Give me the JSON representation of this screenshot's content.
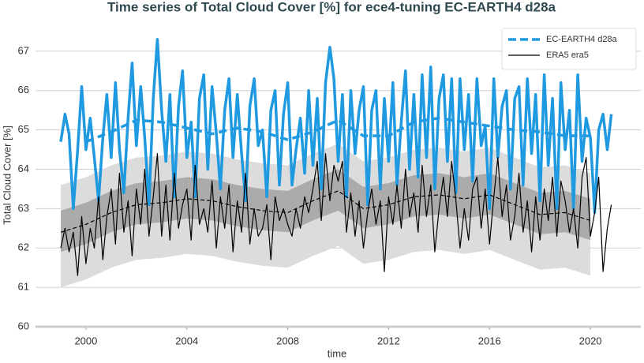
{
  "chart_data": {
    "type": "line",
    "title": "Time series of Total Cloud Cover [%] for ece4-tuning EC-EARTH4 d28a",
    "xlabel": "time",
    "ylabel": "Total Cloud Cover [%]",
    "xlim": [
      1998,
      2022
    ],
    "ylim": [
      60,
      67.7
    ],
    "xticks": [
      2000,
      2004,
      2008,
      2012,
      2016,
      2020
    ],
    "yticks": [
      60,
      61,
      62,
      63,
      64,
      65,
      66,
      67
    ],
    "grid": true,
    "legend": "upper right",
    "x": [
      1999,
      1999.17,
      1999.33,
      1999.5,
      1999.67,
      1999.83,
      2000,
      2000.17,
      2000.33,
      2000.5,
      2000.67,
      2000.83,
      2001,
      2001.17,
      2001.33,
      2001.5,
      2001.67,
      2001.83,
      2002,
      2002.17,
      2002.33,
      2002.5,
      2002.67,
      2002.83,
      2003,
      2003.17,
      2003.33,
      2003.5,
      2003.67,
      2003.83,
      2004,
      2004.17,
      2004.33,
      2004.5,
      2004.67,
      2004.83,
      2005,
      2005.17,
      2005.33,
      2005.5,
      2005.67,
      2005.83,
      2006,
      2006.17,
      2006.33,
      2006.5,
      2006.67,
      2006.83,
      2007,
      2007.17,
      2007.33,
      2007.5,
      2007.67,
      2007.83,
      2008,
      2008.17,
      2008.33,
      2008.5,
      2008.67,
      2008.83,
      2009,
      2009.17,
      2009.33,
      2009.5,
      2009.67,
      2009.83,
      2010,
      2010.17,
      2010.33,
      2010.5,
      2010.67,
      2010.83,
      2011,
      2011.17,
      2011.33,
      2011.5,
      2011.67,
      2011.83,
      2012,
      2012.17,
      2012.33,
      2012.5,
      2012.67,
      2012.83,
      2013,
      2013.17,
      2013.33,
      2013.5,
      2013.67,
      2013.83,
      2014,
      2014.17,
      2014.33,
      2014.5,
      2014.67,
      2014.83,
      2015,
      2015.17,
      2015.33,
      2015.5,
      2015.67,
      2015.83,
      2016,
      2016.17,
      2016.33,
      2016.5,
      2016.67,
      2016.83,
      2017,
      2017.17,
      2017.33,
      2017.5,
      2017.67,
      2017.83,
      2018,
      2018.17,
      2018.33,
      2018.5,
      2018.67,
      2018.83,
      2019,
      2019.17,
      2019.33,
      2019.5,
      2019.67,
      2019.83,
      2020,
      2020.17,
      2020.33,
      2020.5,
      2020.67,
      2020.83
    ],
    "smooth_x": [
      1999,
      2000,
      2001,
      2002,
      2003,
      2004,
      2005,
      2006,
      2007,
      2008,
      2009,
      2010,
      2011,
      2012,
      2013,
      2014,
      2015,
      2016,
      2017,
      2018,
      2019,
      2020
    ],
    "bands": [
      {
        "color": "#dcdcdc",
        "lower": [
          61.0,
          61.2,
          61.5,
          61.7,
          61.75,
          61.85,
          61.8,
          61.65,
          61.55,
          61.5,
          61.8,
          62.05,
          61.6,
          61.7,
          61.9,
          61.95,
          61.85,
          61.95,
          61.7,
          61.45,
          61.5,
          61.3
        ],
        "upper": [
          63.6,
          63.8,
          64.1,
          64.3,
          64.35,
          64.45,
          64.4,
          64.25,
          64.15,
          64.1,
          64.4,
          64.65,
          64.2,
          64.3,
          64.5,
          64.55,
          64.45,
          64.55,
          64.3,
          64.05,
          64.1,
          63.9
        ]
      },
      {
        "color": "#ababab",
        "lower": [
          61.9,
          62.1,
          62.4,
          62.6,
          62.65,
          62.75,
          62.7,
          62.55,
          62.45,
          62.4,
          62.7,
          62.95,
          62.5,
          62.6,
          62.8,
          62.85,
          62.75,
          62.85,
          62.6,
          62.35,
          62.4,
          62.2
        ],
        "upper": [
          62.95,
          63.15,
          63.45,
          63.65,
          63.7,
          63.8,
          63.75,
          63.6,
          63.5,
          63.45,
          63.75,
          64.0,
          63.55,
          63.65,
          63.85,
          63.9,
          63.8,
          63.9,
          63.65,
          63.4,
          63.45,
          63.25
        ]
      }
    ],
    "series": [
      {
        "name": "EC-EARTH4 d28a",
        "color": "#1f9ae0",
        "width": 3.5,
        "legend_line": "dashed",
        "values": [
          64.7,
          65.4,
          64.9,
          63.0,
          64.5,
          66.1,
          64.5,
          65.3,
          64.3,
          63.2,
          64.8,
          65.9,
          64.3,
          66.2,
          64.5,
          63.4,
          65.3,
          66.7,
          64.6,
          66.1,
          64.8,
          63.1,
          65.8,
          67.3,
          65.5,
          64.2,
          65.9,
          63.3,
          65.6,
          66.5,
          64.3,
          65.2,
          63.3,
          65.8,
          66.4,
          64.0,
          66.1,
          64.9,
          63.5,
          65.5,
          66.3,
          64.3,
          65.9,
          64.4,
          63.2,
          65.6,
          66.3,
          64.6,
          65.0,
          63.3,
          65.5,
          66.0,
          63.6,
          65.4,
          66.2,
          63.6,
          64.5,
          65.3,
          63.9,
          66.0,
          64.1,
          65.8,
          63.5,
          66.2,
          67.1,
          66.3,
          64.2,
          65.9,
          63.3,
          66.0,
          64.4,
          65.5,
          66.1,
          63.1,
          65.5,
          66.0,
          63.5,
          65.8,
          64.2,
          66.2,
          63.6,
          65.2,
          66.5,
          64.0,
          65.9,
          63.8,
          66.4,
          64.3,
          66.6,
          63.5,
          65.8,
          66.4,
          64.2,
          66.3,
          63.4,
          66.3,
          64.5,
          65.9,
          63.7,
          66.3,
          64.6,
          65.1,
          63.0,
          66.3,
          64.3,
          65.6,
          66.0,
          63.5,
          65.8,
          66.1,
          63.6,
          66.3,
          64.4,
          65.9,
          63.2,
          66.4,
          64.1,
          65.8,
          63.0,
          66.2,
          64.5,
          65.5,
          63.0,
          66.4,
          64.2,
          65.3,
          64.8,
          62.9,
          65.0,
          65.4,
          64.5,
          65.4
        ],
        "smooth": [
          null,
          64.7,
          64.95,
          65.25,
          65.2,
          65.05,
          64.9,
          65.05,
          64.95,
          64.75,
          64.95,
          65.25,
          64.85,
          64.85,
          65.2,
          65.3,
          65.2,
          65.1,
          65.0,
          64.95,
          64.85,
          64.85
        ]
      },
      {
        "name": "ERA5 era5",
        "color": "#000000",
        "width": 1.2,
        "legend_line": "solid",
        "values": [
          62.0,
          62.5,
          61.9,
          62.4,
          61.3,
          62.8,
          61.6,
          62.5,
          62.0,
          63.3,
          61.7,
          62.8,
          63.5,
          62.1,
          63.9,
          62.4,
          63.2,
          61.8,
          63.5,
          62.6,
          64.0,
          62.3,
          63.3,
          64.4,
          62.3,
          63.6,
          62.2,
          63.9,
          62.5,
          63.1,
          63.5,
          62.2,
          64.1,
          62.6,
          63.0,
          62.4,
          63.7,
          62.0,
          63.3,
          62.5,
          63.6,
          61.9,
          63.2,
          62.4,
          63.9,
          62.1,
          63.0,
          62.3,
          62.5,
          63.1,
          61.7,
          63.3,
          62.7,
          63.0,
          62.6,
          62.3,
          63.0,
          62.5,
          63.3,
          62.9,
          63.5,
          64.2,
          62.7,
          64.4,
          63.2,
          64.1,
          63.7,
          64.2,
          62.4,
          63.4,
          62.3,
          63.2,
          62.0,
          62.9,
          63.5,
          62.6,
          63.2,
          61.4,
          63.3,
          62.6,
          63.6,
          62.5,
          64.0,
          62.8,
          63.4,
          62.4,
          64.1,
          62.8,
          63.6,
          61.9,
          63.0,
          63.8,
          62.8,
          64.2,
          63.2,
          62.0,
          63.0,
          62.2,
          63.5,
          63.8,
          62.5,
          63.5,
          62.1,
          63.3,
          64.3,
          62.8,
          63.6,
          62.2,
          62.8,
          63.9,
          62.4,
          63.2,
          61.9,
          63.3,
          62.2,
          63.5,
          62.7,
          63.8,
          62.3,
          63.7,
          63.2,
          62.4,
          63.0,
          62.0,
          63.8,
          64.3,
          62.3,
          62.9,
          63.8,
          61.4,
          62.5,
          63.1
        ],
        "smooth": [
          62.4,
          62.6,
          62.9,
          63.1,
          63.15,
          63.25,
          63.2,
          63.05,
          62.95,
          62.9,
          63.2,
          63.45,
          63.0,
          63.1,
          63.3,
          63.35,
          63.25,
          63.35,
          63.1,
          62.85,
          62.9,
          62.7
        ]
      }
    ]
  }
}
